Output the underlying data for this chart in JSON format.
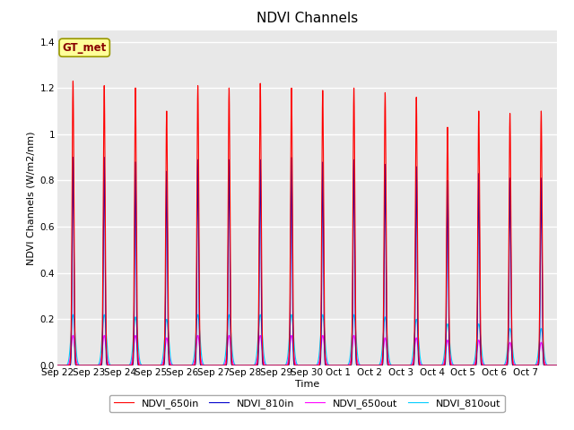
{
  "title": "NDVI Channels",
  "xlabel": "Time",
  "ylabel": "NDVI Channels (W/m2/nm)",
  "ylim": [
    0,
    1.45
  ],
  "yticks": [
    0.0,
    0.2,
    0.4,
    0.6,
    0.8,
    1.0,
    1.2,
    1.4
  ],
  "background_color": "#e8e8e8",
  "fig_background": "#ffffff",
  "annotation_text": "GT_met",
  "annotation_facecolor": "#ffff99",
  "annotation_edgecolor": "#999900",
  "colors": {
    "NDVI_650in": "#ff0000",
    "NDVI_810in": "#0000cc",
    "NDVI_650out": "#ff00ff",
    "NDVI_810out": "#00ccff"
  },
  "peaks_650in": [
    1.23,
    1.21,
    1.2,
    1.1,
    1.21,
    1.2,
    1.22,
    1.2,
    1.19,
    1.2,
    1.18,
    1.16,
    1.03,
    1.1,
    1.09,
    1.1
  ],
  "peaks_810in": [
    0.9,
    0.9,
    0.88,
    0.84,
    0.89,
    0.89,
    0.89,
    0.9,
    0.88,
    0.89,
    0.87,
    0.86,
    0.8,
    0.83,
    0.81,
    0.81
  ],
  "peaks_650out": [
    0.13,
    0.13,
    0.13,
    0.12,
    0.13,
    0.13,
    0.13,
    0.13,
    0.13,
    0.13,
    0.12,
    0.12,
    0.11,
    0.11,
    0.1,
    0.1
  ],
  "peaks_810out": [
    0.22,
    0.22,
    0.21,
    0.2,
    0.22,
    0.22,
    0.22,
    0.22,
    0.22,
    0.22,
    0.21,
    0.2,
    0.18,
    0.18,
    0.16,
    0.16
  ],
  "num_days": 16,
  "xtick_labels": [
    "Sep 22",
    "Sep 23",
    "Sep 24",
    "Sep 25",
    "Sep 26",
    "Sep 27",
    "Sep 28",
    "Sep 29",
    "Sep 30",
    "Oct 1",
    "Oct 2",
    "Oct 3",
    "Oct 4",
    "Oct 5",
    "Oct 6",
    "Oct 7"
  ],
  "title_fontsize": 11,
  "axis_label_fontsize": 8,
  "tick_fontsize": 7.5,
  "legend_fontsize": 8,
  "annotation_fontsize": 8.5
}
